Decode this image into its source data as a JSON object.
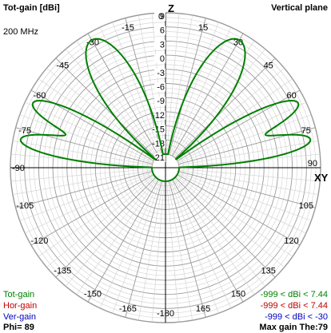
{
  "header": {
    "title": "Tot-gain [dBi]",
    "plane": "Vertical plane",
    "frequency": "200 MHz"
  },
  "axes": {
    "top_label": "Z",
    "right_label": "XY"
  },
  "legend": {
    "items": [
      {
        "name": "Tot-gain",
        "range": "-999 < dBi < 7.44",
        "color": "#008000"
      },
      {
        "name": "Hor-gain",
        "range": "-999 < dBi < 7.44",
        "color": "#c00000"
      },
      {
        "name": "Ver-gain",
        "range": "-999 < dBi < -30",
        "color": "#0000c0"
      }
    ]
  },
  "footer": {
    "phi": "Phi= 89",
    "maxgain": "Max gain The:79"
  },
  "chart_data": {
    "type": "polar",
    "title": "Tot-gain [dBi]",
    "subtitle": "Vertical plane",
    "radial_scale": {
      "min": -21,
      "max": 9,
      "step": 3,
      "unit": "dBi"
    },
    "radial_tick_labels": [
      "9",
      "6",
      "3",
      "0",
      "-3",
      "-6",
      "-9",
      "-12",
      "-15",
      "-18",
      "-21"
    ],
    "angle_tick_step_deg": 15,
    "angle_tick_labels": [
      {
        "deg": 0,
        "text": "0"
      },
      {
        "deg": 15,
        "text": "15"
      },
      {
        "deg": 30,
        "text": "30"
      },
      {
        "deg": 45,
        "text": "45"
      },
      {
        "deg": 60,
        "text": "60"
      },
      {
        "deg": 75,
        "text": "75"
      },
      {
        "deg": 90,
        "text": "90"
      },
      {
        "deg": 105,
        "text": "105"
      },
      {
        "deg": 120,
        "text": "120"
      },
      {
        "deg": 135,
        "text": "135"
      },
      {
        "deg": 150,
        "text": "150"
      },
      {
        "deg": 165,
        "text": "165"
      },
      {
        "deg": 180,
        "text": "-180"
      },
      {
        "deg": -165,
        "text": "-165"
      },
      {
        "deg": -150,
        "text": "-150"
      },
      {
        "deg": -135,
        "text": "-135"
      },
      {
        "deg": -120,
        "text": "-120"
      },
      {
        "deg": -105,
        "text": "-105"
      },
      {
        "deg": -90,
        "text": "-90"
      },
      {
        "deg": -75,
        "text": "-75"
      },
      {
        "deg": -60,
        "text": "-60"
      },
      {
        "deg": -45,
        "text": "-45"
      },
      {
        "deg": -30,
        "text": "-30"
      },
      {
        "deg": -15,
        "text": "-15"
      }
    ],
    "lobes": [
      {
        "peak_deg": 79,
        "peak_dbi": 7.4,
        "beamwidth_deg": 9
      },
      {
        "peak_deg": 64,
        "peak_dbi": 7.4,
        "beamwidth_deg": 10
      },
      {
        "peak_deg": 30,
        "peak_dbi": 7.4,
        "beamwidth_deg": 18
      },
      {
        "peak_deg": -30,
        "peak_dbi": 7.4,
        "beamwidth_deg": 18
      },
      {
        "peak_deg": -64,
        "peak_dbi": 7.4,
        "beamwidth_deg": 10
      },
      {
        "peak_deg": -79,
        "peak_dbi": 7.4,
        "beamwidth_deg": 9
      }
    ],
    "series": [
      {
        "name": "Tot-gain",
        "color": "#008000"
      }
    ]
  }
}
